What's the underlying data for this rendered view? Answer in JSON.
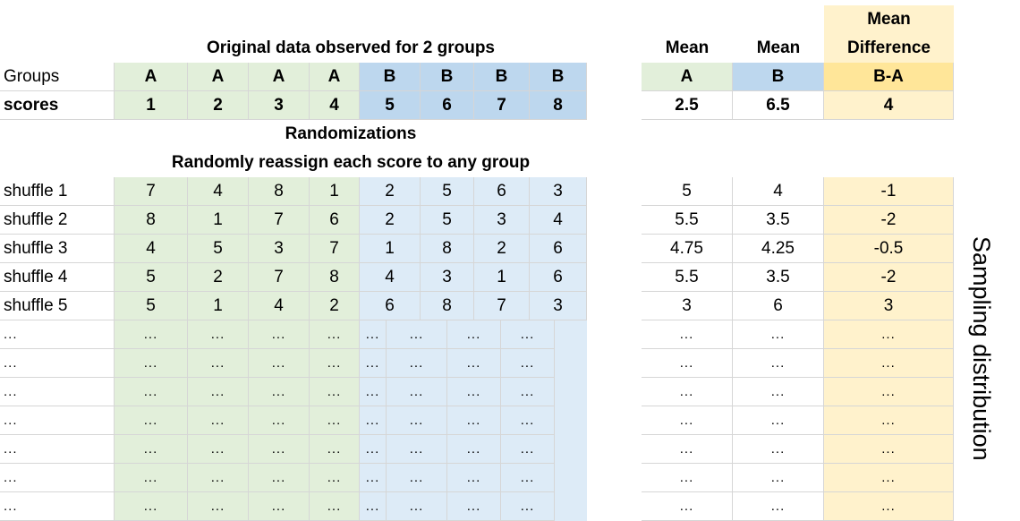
{
  "colors": {
    "group_a_header": "#e2efda",
    "group_a_body": "#e2efda",
    "group_b_header": "#bdd7ee",
    "group_b_body": "#ddebf7",
    "diff_header": "#ffe699",
    "diff_body": "#fff2cc",
    "gridline": "#d6d6d6"
  },
  "header": {
    "title": "Original data observed for 2 groups",
    "mean_a_label": "Mean",
    "mean_b_label": "Mean",
    "mean_diff_label_1": "Mean",
    "mean_diff_label_2": "Difference"
  },
  "groups_row": {
    "label": "Groups",
    "a": [
      "A",
      "A",
      "A",
      "A"
    ],
    "b": [
      "B",
      "B",
      "B",
      "B"
    ],
    "mean_a": "A",
    "mean_b": "B",
    "diff": "B-A"
  },
  "scores_row": {
    "label": "scores",
    "a": [
      "1",
      "2",
      "3",
      "4"
    ],
    "b": [
      "5",
      "6",
      "7",
      "8"
    ],
    "mean_a": "2.5",
    "mean_b": "6.5",
    "diff": "4"
  },
  "randomizations_label": "Randomizations",
  "reassign_label": "Randomly reassign each score to any group",
  "shuffles": [
    {
      "label": "shuffle 1",
      "a": [
        "7",
        "4",
        "8",
        "1"
      ],
      "b": [
        "2",
        "5",
        "6",
        "3"
      ],
      "mean_a": "5",
      "mean_b": "4",
      "diff": "-1"
    },
    {
      "label": "shuffle 2",
      "a": [
        "8",
        "1",
        "7",
        "6"
      ],
      "b": [
        "2",
        "5",
        "3",
        "4"
      ],
      "mean_a": "5.5",
      "mean_b": "3.5",
      "diff": "-2"
    },
    {
      "label": "shuffle 3",
      "a": [
        "4",
        "5",
        "3",
        "7"
      ],
      "b": [
        "1",
        "8",
        "2",
        "6"
      ],
      "mean_a": "4.75",
      "mean_b": "4.25",
      "diff": "-0.5"
    },
    {
      "label": "shuffle 4",
      "a": [
        "5",
        "2",
        "7",
        "8"
      ],
      "b": [
        "4",
        "3",
        "1",
        "6"
      ],
      "mean_a": "5.5",
      "mean_b": "3.5",
      "diff": "-2"
    },
    {
      "label": "shuffle 5",
      "a": [
        "5",
        "1",
        "4",
        "2"
      ],
      "b": [
        "6",
        "8",
        "7",
        "3"
      ],
      "mean_a": "3",
      "mean_b": "6",
      "diff": "3"
    }
  ],
  "ellipsis": "...",
  "sampling_label": "Sampling distribution"
}
